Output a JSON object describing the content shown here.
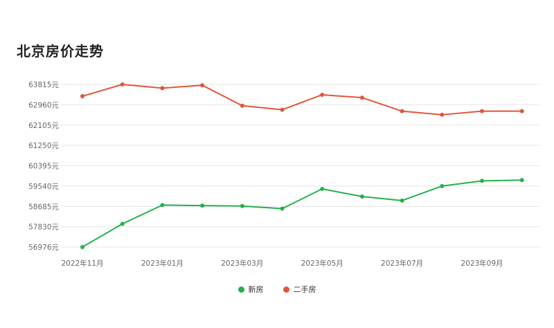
{
  "title": "北京房价走势",
  "chart_data": {
    "type": "line",
    "title": "北京房价走势",
    "x": [
      "2022年11月",
      "2022年12月",
      "2023年01月",
      "2023年02月",
      "2023年03月",
      "2023年04月",
      "2023年05月",
      "2023年06月",
      "2023年07月",
      "2023年08月",
      "2023年09月",
      "2023年10月"
    ],
    "x_tick_labels": [
      "2022年11月",
      "2023年01月",
      "2023年03月",
      "2023年05月",
      "2023年07月",
      "2023年09月"
    ],
    "y_ticks": [
      "56976元",
      "57830元",
      "58685元",
      "59540元",
      "60395元",
      "61250元",
      "62105元",
      "62960元",
      "63815元"
    ],
    "ylim": [
      56976,
      63815
    ],
    "grid": true,
    "legend_position": "bottom",
    "series": [
      {
        "name": "新房",
        "color": "#22b14c",
        "values": [
          56976,
          57950,
          58740,
          58720,
          58700,
          58590,
          59420,
          59100,
          58930,
          59540,
          59760,
          59790
        ]
      },
      {
        "name": "二手房",
        "color": "#e0553a",
        "values": [
          63320,
          63815,
          63660,
          63780,
          62920,
          62750,
          63380,
          63260,
          62690,
          62540,
          62690,
          62690
        ]
      }
    ]
  }
}
